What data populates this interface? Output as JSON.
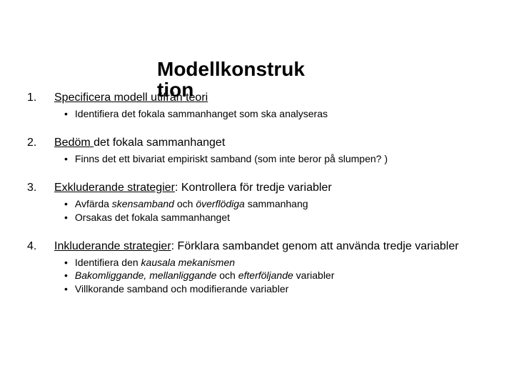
{
  "title_line1": "Modellkonstruk",
  "title_line2": "tion",
  "items": [
    {
      "num": "1.",
      "heading_u": "Specificera modell utifrån teori",
      "heading_rest": "",
      "subs": [
        {
          "pre": "Identifiera det fokala sammanhanget som ska analyseras",
          "it": "",
          "post": ""
        }
      ]
    },
    {
      "num": "2.",
      "heading_u": "Bedöm ",
      "heading_rest": "det fokala sammanhanget",
      "subs": [
        {
          "pre": "Finns det ett bivariat empiriskt samband (som inte beror på slumpen? )",
          "it": "",
          "post": ""
        }
      ]
    },
    {
      "num": "3.",
      "heading_u": "Exkluderande strategier",
      "heading_rest": ": Kontrollera för tredje variabler",
      "subs": [
        {
          "pre": "Avfärda ",
          "it": "skensamband",
          "mid": " och ",
          "it2": "överflödiga",
          "post": " sammanhang"
        },
        {
          "pre": "Orsakas det fokala sammanhanget",
          "it": "",
          "post": ""
        }
      ]
    },
    {
      "num": "4.",
      "heading_u": "Inkluderande strategier",
      "heading_rest": ": Förklara sambandet genom att använda tredje variabler",
      "subs": [
        {
          "pre": "Identifiera den ",
          "it": "kausala mekanismen",
          "post": ""
        },
        {
          "pre": "",
          "it": "Bakomliggande, mellanliggande",
          "mid": " och ",
          "it2": "efterföljande",
          "post": " variabler"
        },
        {
          "pre": "Villkorande samband och modifierande variabler",
          "it": "",
          "post": ""
        }
      ]
    }
  ]
}
